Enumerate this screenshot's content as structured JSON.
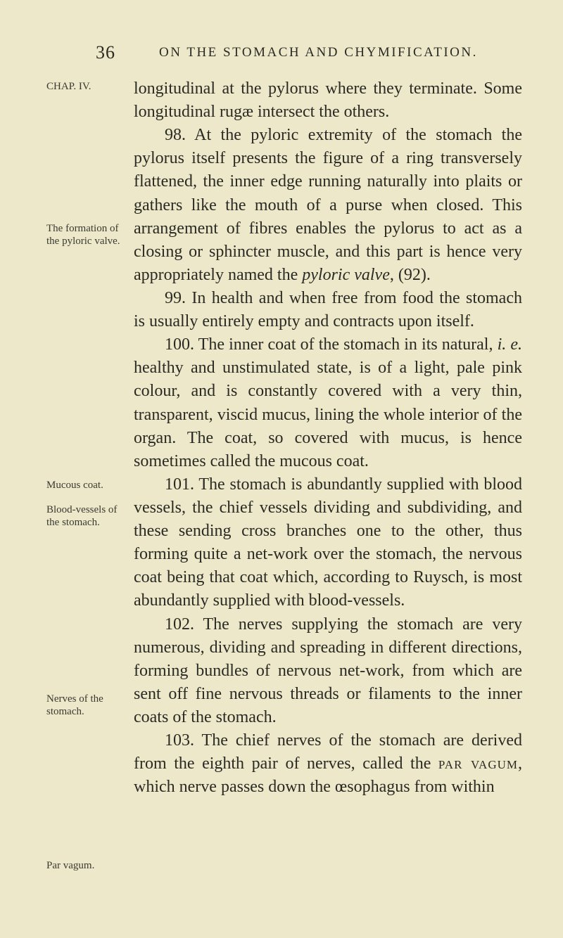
{
  "page_number": "36",
  "running_head": "ON THE STOMACH AND CHYMIFICATION.",
  "sidenotes": {
    "sn1": "CHAP. IV.",
    "sn2": "The formation of the pyloric valve.",
    "sn3": "Mucous coat.",
    "sn4": "Blood-vessels of the stomach.",
    "sn5": "Nerves of the stomach.",
    "sn6": "Par vagum."
  },
  "paragraphs": {
    "p1": "longitudinal at the pylorus where they terminate. Some longitudinal rugæ intersect the others.",
    "p2a": "98. At the pyloric extremity of the stomach the pylorus itself presents the figure of a ring transversely flattened, the inner edge running naturally into plaits or gathers like the mouth of a purse when closed. This arrangement of fibres enables the pylorus to act as a closing or sphincter muscle, and this part is hence very appropriately named the ",
    "p2_ital": "pyloric valve",
    "p2b": ", (92).",
    "p3": "99. In health and when free from food the stomach is usually entirely empty and contracts upon itself.",
    "p4a": "100. The inner coat of the stomach in its natural, ",
    "p4_ie": "i. e.",
    "p4b": " healthy and unstimulated state, is of a light, pale pink colour, and is constantly covered with a very thin, transparent, viscid mucus, lining the whole interior of the organ. The coat, so covered with mucus, is hence sometimes called the mucous coat.",
    "p5": "101. The stomach is abundantly supplied with blood vessels, the chief vessels dividing and subdividing, and these sending cross branches one to the other, thus forming quite a net-work over the stomach, the nervous coat being that coat which, according to Ruysch, is most abundantly supplied with blood-vessels.",
    "p6": "102. The nerves supplying the stomach are very numerous, dividing and spreading in different directions, forming bundles of nervous net-work, from which are sent off fine nervous threads or filaments to the inner coats of the stomach.",
    "p7a": "103. The chief nerves of the stomach are derived from the eighth pair of nerves, called the ",
    "p7_sc": "par vagum",
    "p7b": ", which nerve passes down the œsophagus from within"
  },
  "side_positions": {
    "sn1": 114,
    "sn2": 316,
    "sn3": 681,
    "sn4": 716,
    "sn5": 985,
    "sn6": 1222
  }
}
